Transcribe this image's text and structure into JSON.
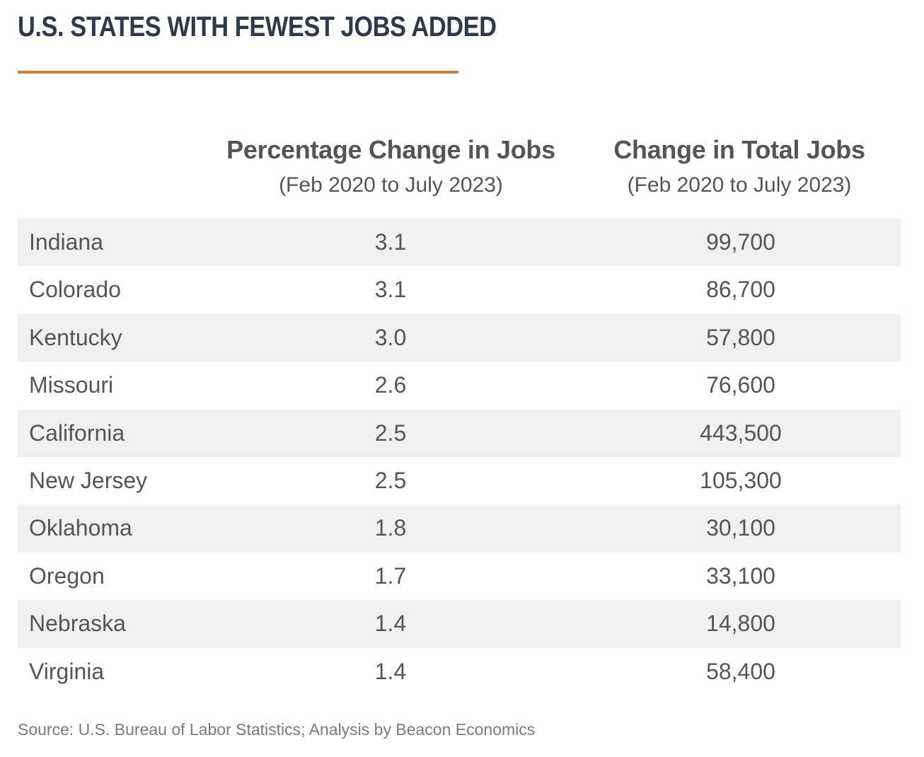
{
  "title": "U.S. STATES WITH FEWEST JOBS ADDED",
  "colors": {
    "title": "#2e3a4c",
    "accent_rule": "#d07d3a",
    "row_shade": "#f1f0ef",
    "text": "#555555"
  },
  "chart_data": {
    "type": "table",
    "title": "U.S. STATES WITH FEWEST JOBS ADDED",
    "columns": [
      {
        "header": "Percentage Change in Jobs",
        "subheader": "(Feb 2020 to July 2023)"
      },
      {
        "header": "Change in Total Jobs",
        "subheader": "(Feb 2020 to July 2023)"
      }
    ],
    "rows": [
      {
        "state": "Indiana",
        "pct": "3.1",
        "total": "99,700"
      },
      {
        "state": "Colorado",
        "pct": "3.1",
        "total": "86,700"
      },
      {
        "state": "Kentucky",
        "pct": "3.0",
        "total": "57,800"
      },
      {
        "state": "Missouri",
        "pct": "2.6",
        "total": "76,600"
      },
      {
        "state": "California",
        "pct": "2.5",
        "total": "443,500"
      },
      {
        "state": "New Jersey",
        "pct": "2.5",
        "total": "105,300"
      },
      {
        "state": "Oklahoma",
        "pct": "1.8",
        "total": "30,100"
      },
      {
        "state": "Oregon",
        "pct": "1.7",
        "total": "33,100"
      },
      {
        "state": "Nebraska",
        "pct": "1.4",
        "total": "14,800"
      },
      {
        "state": "Virginia",
        "pct": "1.4",
        "total": "58,400"
      }
    ]
  },
  "source": "Source: U.S. Bureau of Labor Statistics; Analysis by Beacon Economics"
}
